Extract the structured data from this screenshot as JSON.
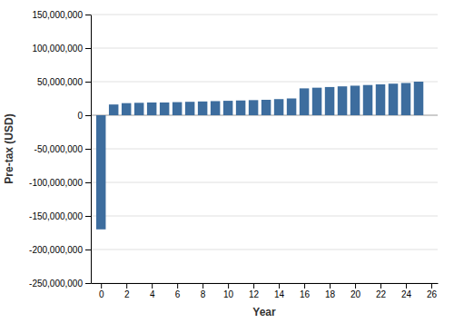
{
  "chart_data": {
    "type": "bar",
    "xlabel": "Year",
    "ylabel": "Pre-tax (USD)",
    "x": [
      0,
      1,
      2,
      3,
      4,
      5,
      6,
      7,
      8,
      9,
      10,
      11,
      12,
      13,
      14,
      15,
      16,
      17,
      18,
      19,
      20,
      21,
      22,
      23,
      24,
      25
    ],
    "values": [
      -170000000,
      16000000,
      18000000,
      18500000,
      19000000,
      19000000,
      19500000,
      20000000,
      20500000,
      21000000,
      21500000,
      22000000,
      22500000,
      23000000,
      24000000,
      25000000,
      40000000,
      41000000,
      42000000,
      43000000,
      44000000,
      45000000,
      46000000,
      47000000,
      48000000,
      50000000
    ],
    "color": "#3d6d9e",
    "xlim": [
      -0.8,
      26.5
    ],
    "xticks": [
      0,
      2,
      4,
      6,
      8,
      10,
      12,
      14,
      16,
      18,
      20,
      22,
      24,
      26
    ],
    "ylim": [
      -250000000,
      150000000
    ],
    "yticks": [
      {
        "value": -250000000,
        "label": "-250,000,000"
      },
      {
        "value": -200000000,
        "label": "-200,000,000"
      },
      {
        "value": -150000000,
        "label": "-150,000,000"
      },
      {
        "value": -100000000,
        "label": "-100,000,000"
      },
      {
        "value": -50000000,
        "label": "-50,000,000"
      },
      0,
      {
        "value": 50000000,
        "label": "50,000,000"
      },
      {
        "value": 100000000,
        "label": "100,000,000"
      },
      {
        "value": 150000000,
        "label": "150,000,000"
      }
    ],
    "grid": true
  }
}
